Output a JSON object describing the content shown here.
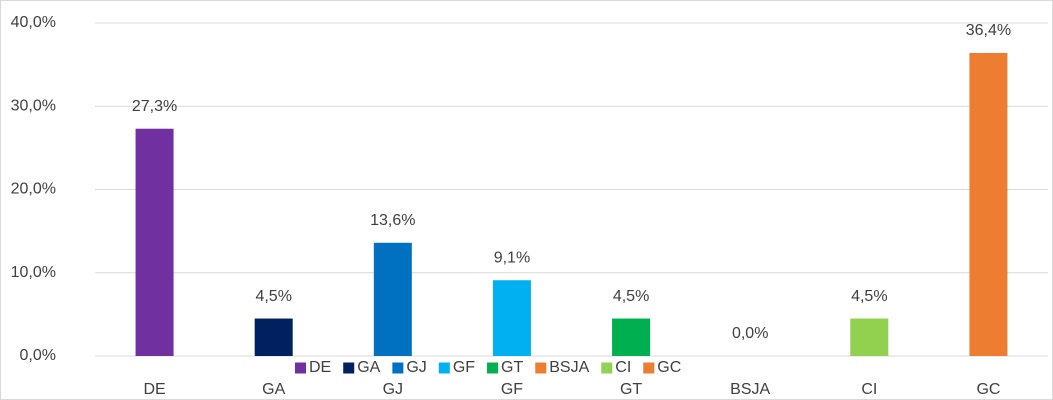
{
  "chart_data": {
    "type": "bar",
    "categories": [
      "DE",
      "GA",
      "GJ",
      "GF",
      "GT",
      "BSJA",
      "CI",
      "GC"
    ],
    "values": [
      27.3,
      4.5,
      13.6,
      9.1,
      4.5,
      0.0,
      4.5,
      36.4
    ],
    "value_labels": [
      "27,3%",
      "4,5%",
      "13,6%",
      "9,1%",
      "4,5%",
      "0,0%",
      "4,5%",
      "36,4%"
    ],
    "colors": [
      "#7030a0",
      "#002060",
      "#0070c0",
      "#00b0f0",
      "#00b050",
      "#ed7d31",
      "#92d050",
      "#ed7d31"
    ],
    "ylim": [
      0,
      40
    ],
    "yticks": [
      {
        "value": 0,
        "label": "0,0%"
      },
      {
        "value": 10,
        "label": "10,0%"
      },
      {
        "value": 20,
        "label": "20,0%"
      },
      {
        "value": 30,
        "label": "30,0%"
      },
      {
        "value": 40,
        "label": "40,0%"
      }
    ],
    "grid": true,
    "legend": "bottom"
  }
}
